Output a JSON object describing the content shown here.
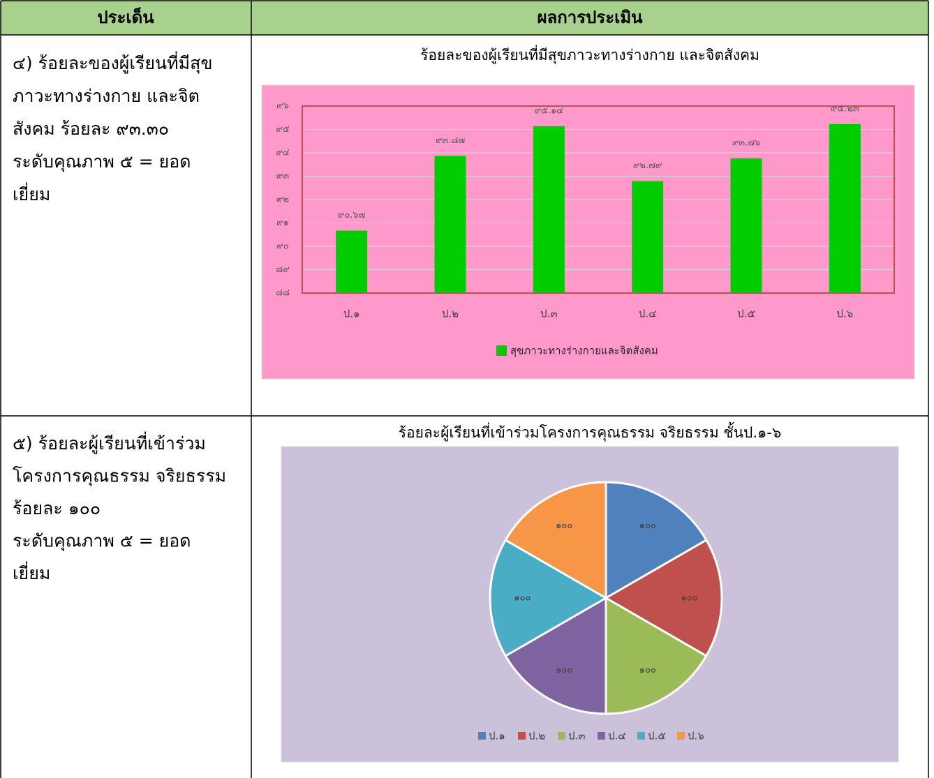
{
  "table": {
    "headers": [
      "ประเด็น",
      "ผลการประเมิน"
    ],
    "rows": [
      {
        "lines": [
          "๔)  ร้อยละของผู้เรียนที่มีสุข",
          "ภาวะทางร่างกาย และจิต",
          "สังคม ร้อยละ ๙๓.๓๐",
          "ระดับคุณภาพ ๕ = ยอด",
          "เยี่ยม"
        ]
      },
      {
        "lines": [
          "๕) ร้อยละผู้เรียนที่เข้าร่วม",
          "โครงการคุณธรรม จริยธรรม",
          "ร้อยละ ๑๐๐",
          "ระดับคุณภาพ ๕ = ยอด",
          "เยี่ยม"
        ]
      }
    ]
  },
  "chart_data": [
    {
      "type": "bar",
      "title": "ร้อยละของผู้เรียนที่มีสุขภาวะทางร่างกาย และจิตสังคม",
      "categories": [
        "ป.๑",
        "ป.๒",
        "ป.๓",
        "ป.๔",
        "ป.๕",
        "ป.๖"
      ],
      "series": [
        {
          "name": "สุขภาวะทางร่างกายและจิตสังคม",
          "color": "#00cc00",
          "values": [
            90.67,
            93.87,
            95.14,
            92.79,
            93.76,
            95.23
          ],
          "value_labels": [
            "๙๐.๖๗",
            "๙๓.๘๗",
            "๙๕.๑๔",
            "๙๒.๗๙",
            "๙๓.๗๖",
            "๙๕.๒๓"
          ]
        }
      ],
      "ylim": [
        88,
        96
      ],
      "yticks": [
        {
          "value": 88,
          "label": "๘๘"
        },
        {
          "value": 89,
          "label": "๘๙"
        },
        {
          "value": 90,
          "label": "๙๐"
        },
        {
          "value": 91,
          "label": "๙๑"
        },
        {
          "value": 92,
          "label": "๙๒"
        },
        {
          "value": 93,
          "label": "๙๓"
        },
        {
          "value": 94,
          "label": "๙๔"
        },
        {
          "value": 95,
          "label": "๙๕"
        },
        {
          "value": 96,
          "label": "๙๖"
        }
      ],
      "grid": true,
      "legend": "bottom",
      "background": "#ff99cc"
    },
    {
      "type": "pie",
      "title": "ร้อยละผู้เรียนที่เข้าร่วมโครงการคุณธรรม จริยธรรม ชั้นป.๑-๖",
      "categories": [
        "ป.๑",
        "ป.๒",
        "ป.๓",
        "ป.๔",
        "ป.๕",
        "ป.๖"
      ],
      "values": [
        100,
        100,
        100,
        100,
        100,
        100
      ],
      "value_labels": [
        "๑๐๐",
        "๑๐๐",
        "๑๐๐",
        "๑๐๐",
        "๑๐๐",
        "๑๐๐"
      ],
      "colors": [
        "#4f81bd",
        "#c0504d",
        "#9bbb59",
        "#8064a2",
        "#4bacc6",
        "#f79646"
      ],
      "legend": "bottom",
      "background": "#ccc1da"
    }
  ]
}
